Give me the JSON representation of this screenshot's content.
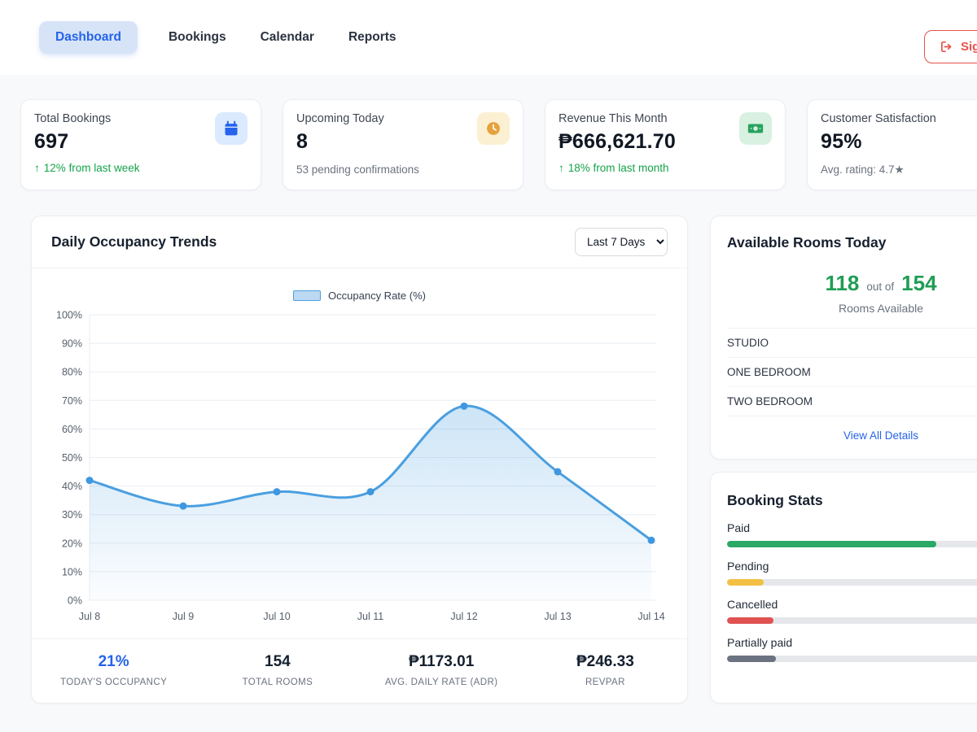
{
  "nav": {
    "tabs": [
      {
        "label": "Dashboard",
        "active": true
      },
      {
        "label": "Bookings",
        "active": false
      },
      {
        "label": "Calendar",
        "active": false
      },
      {
        "label": "Reports",
        "active": false
      }
    ],
    "sign_out_label": "Sign out"
  },
  "stats": [
    {
      "label": "Total Bookings",
      "value": "697",
      "delta_icon": "↑",
      "delta_text": "12% from last week",
      "icon": "calendar-icon"
    },
    {
      "label": "Upcoming Today",
      "value": "8",
      "note": "53 pending confirmations",
      "icon": "clock-icon"
    },
    {
      "label": "Revenue This Month",
      "value": "₱666,621.70",
      "delta_icon": "↑",
      "delta_text": "18% from last month",
      "icon": "banknote-icon"
    },
    {
      "label": "Customer Satisfaction",
      "value": "95%",
      "note": "Avg. rating: 4.7★"
    }
  ],
  "occupancy_card": {
    "title": "Daily Occupancy Trends",
    "range_selector": {
      "value": "Last 7 Days"
    },
    "legend": "Occupancy Rate (%)",
    "footer": [
      {
        "value": "21%",
        "label": "TODAY'S OCCUPANCY"
      },
      {
        "value": "154",
        "label": "TOTAL ROOMS"
      },
      {
        "value": "₱1173.01",
        "label": "AVG. DAILY RATE (ADR)"
      },
      {
        "value": "₱246.33",
        "label": "REVPAR"
      }
    ]
  },
  "chart_data": {
    "type": "line",
    "title": "Daily Occupancy Trends",
    "x": [
      "Jul 8",
      "Jul 9",
      "Jul 10",
      "Jul 11",
      "Jul 12",
      "Jul 13",
      "Jul 14"
    ],
    "series": [
      {
        "name": "Occupancy Rate (%)",
        "values": [
          42,
          33,
          38,
          38,
          68,
          45,
          21
        ]
      }
    ],
    "ylim": [
      0,
      100
    ],
    "ytick_step": 10,
    "ylabel_format": "percent",
    "grid": true,
    "legend_position": "top",
    "line_color": "#4a9fe0",
    "point_color": "#3f97e0",
    "area_from": "rgba(74,159,224,0.28)",
    "area_to": "rgba(74,159,224,0.02)"
  },
  "available_rooms": {
    "title": "Available Rooms Today",
    "available": "118",
    "of_label": "out of",
    "total": "154",
    "subtitle": "Rooms Available",
    "room_types": [
      "STUDIO",
      "ONE BEDROOM",
      "TWO BEDROOM"
    ],
    "link": "View All Details"
  },
  "booking_stats": {
    "title": "Booking Stats",
    "items": [
      {
        "label": "Paid",
        "percent": 68,
        "color": "#2aa866"
      },
      {
        "label": "Pending",
        "percent": 12,
        "color": "#f2c043"
      },
      {
        "label": "Cancelled",
        "percent": 15,
        "color": "#e05252"
      },
      {
        "label": "Partially paid",
        "percent": 16,
        "color": "#6b7280"
      }
    ]
  }
}
